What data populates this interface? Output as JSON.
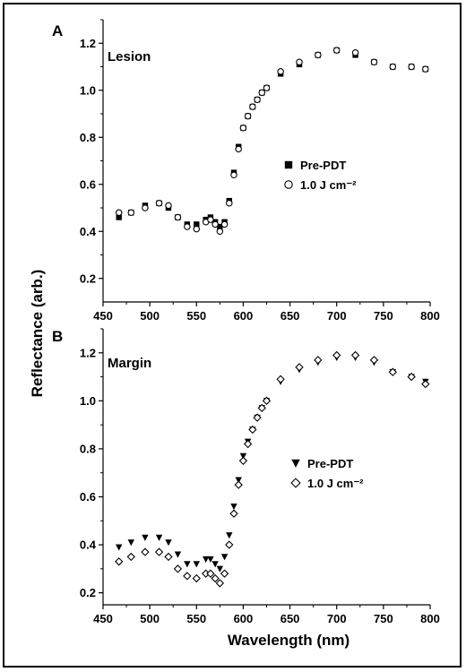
{
  "chart_data": {
    "type": "scatter",
    "xlabel": "Wavelength (nm)",
    "ylabel": "Reflectance (arb.)",
    "panels": [
      {
        "letter": "A",
        "title": "Lesion",
        "xlim": [
          450,
          800
        ],
        "ylim": [
          0.1,
          1.3
        ],
        "xticks": [
          450,
          500,
          550,
          600,
          650,
          700,
          750,
          800
        ],
        "yticks": [
          0.2,
          0.4,
          0.6,
          0.8,
          1.0,
          1.2
        ],
        "legend": "right-middle",
        "series": [
          {
            "name": "Pre-PDT",
            "marker": "square",
            "x": [
              467,
              480,
              495,
              510,
              520,
              530,
              540,
              550,
              560,
              565,
              570,
              575,
              580,
              585,
              590,
              595,
              600,
              605,
              610,
              615,
              620,
              625,
              640,
              660,
              680,
              700,
              720,
              740,
              760,
              780,
              795
            ],
            "y": [
              0.46,
              0.48,
              0.51,
              0.52,
              0.5,
              0.46,
              0.43,
              0.43,
              0.45,
              0.46,
              0.44,
              0.42,
              0.44,
              0.53,
              0.65,
              0.76,
              0.84,
              0.89,
              0.93,
              0.96,
              0.99,
              1.01,
              1.07,
              1.11,
              1.15,
              1.17,
              1.15,
              1.12,
              1.1,
              1.1,
              1.09
            ]
          },
          {
            "name": "1.0 J cm⁻²",
            "marker": "circle",
            "x": [
              467,
              480,
              495,
              510,
              520,
              530,
              540,
              550,
              560,
              565,
              570,
              575,
              580,
              585,
              590,
              595,
              600,
              605,
              610,
              615,
              620,
              625,
              640,
              660,
              680,
              700,
              720,
              740,
              760,
              780,
              795
            ],
            "y": [
              0.48,
              0.48,
              0.5,
              0.52,
              0.51,
              0.46,
              0.42,
              0.41,
              0.44,
              0.45,
              0.43,
              0.4,
              0.43,
              0.52,
              0.64,
              0.75,
              0.84,
              0.89,
              0.93,
              0.96,
              0.99,
              1.01,
              1.08,
              1.12,
              1.15,
              1.17,
              1.16,
              1.12,
              1.1,
              1.1,
              1.09
            ]
          }
        ]
      },
      {
        "letter": "B",
        "title": "Margin",
        "xlim": [
          450,
          800
        ],
        "ylim": [
          0.15,
          1.3
        ],
        "xticks": [
          450,
          500,
          550,
          600,
          650,
          700,
          750,
          800
        ],
        "yticks": [
          0.2,
          0.4,
          0.6,
          0.8,
          1.0,
          1.2
        ],
        "legend": "right-middle",
        "series": [
          {
            "name": "Pre-PDT",
            "marker": "triangle-down",
            "x": [
              467,
              480,
              495,
              510,
              520,
              530,
              540,
              550,
              560,
              565,
              570,
              575,
              580,
              585,
              590,
              595,
              600,
              605,
              610,
              615,
              620,
              625,
              640,
              660,
              680,
              700,
              720,
              740,
              760,
              780,
              795
            ],
            "y": [
              0.39,
              0.41,
              0.43,
              0.43,
              0.41,
              0.36,
              0.32,
              0.32,
              0.34,
              0.34,
              0.32,
              0.3,
              0.35,
              0.44,
              0.56,
              0.67,
              0.77,
              0.83,
              0.88,
              0.93,
              0.97,
              1.0,
              1.08,
              1.13,
              1.16,
              1.18,
              1.18,
              1.16,
              1.12,
              1.1,
              1.08
            ]
          },
          {
            "name": "1.0 J cm⁻²",
            "marker": "diamond",
            "x": [
              467,
              480,
              495,
              510,
              520,
              530,
              540,
              550,
              560,
              565,
              570,
              575,
              580,
              585,
              590,
              595,
              600,
              605,
              610,
              615,
              620,
              625,
              640,
              660,
              680,
              700,
              720,
              740,
              760,
              780,
              795
            ],
            "y": [
              0.33,
              0.35,
              0.37,
              0.37,
              0.35,
              0.3,
              0.27,
              0.26,
              0.28,
              0.28,
              0.26,
              0.24,
              0.28,
              0.4,
              0.53,
              0.65,
              0.75,
              0.82,
              0.88,
              0.93,
              0.97,
              1.0,
              1.09,
              1.14,
              1.17,
              1.19,
              1.19,
              1.17,
              1.12,
              1.1,
              1.07
            ]
          }
        ]
      }
    ]
  }
}
